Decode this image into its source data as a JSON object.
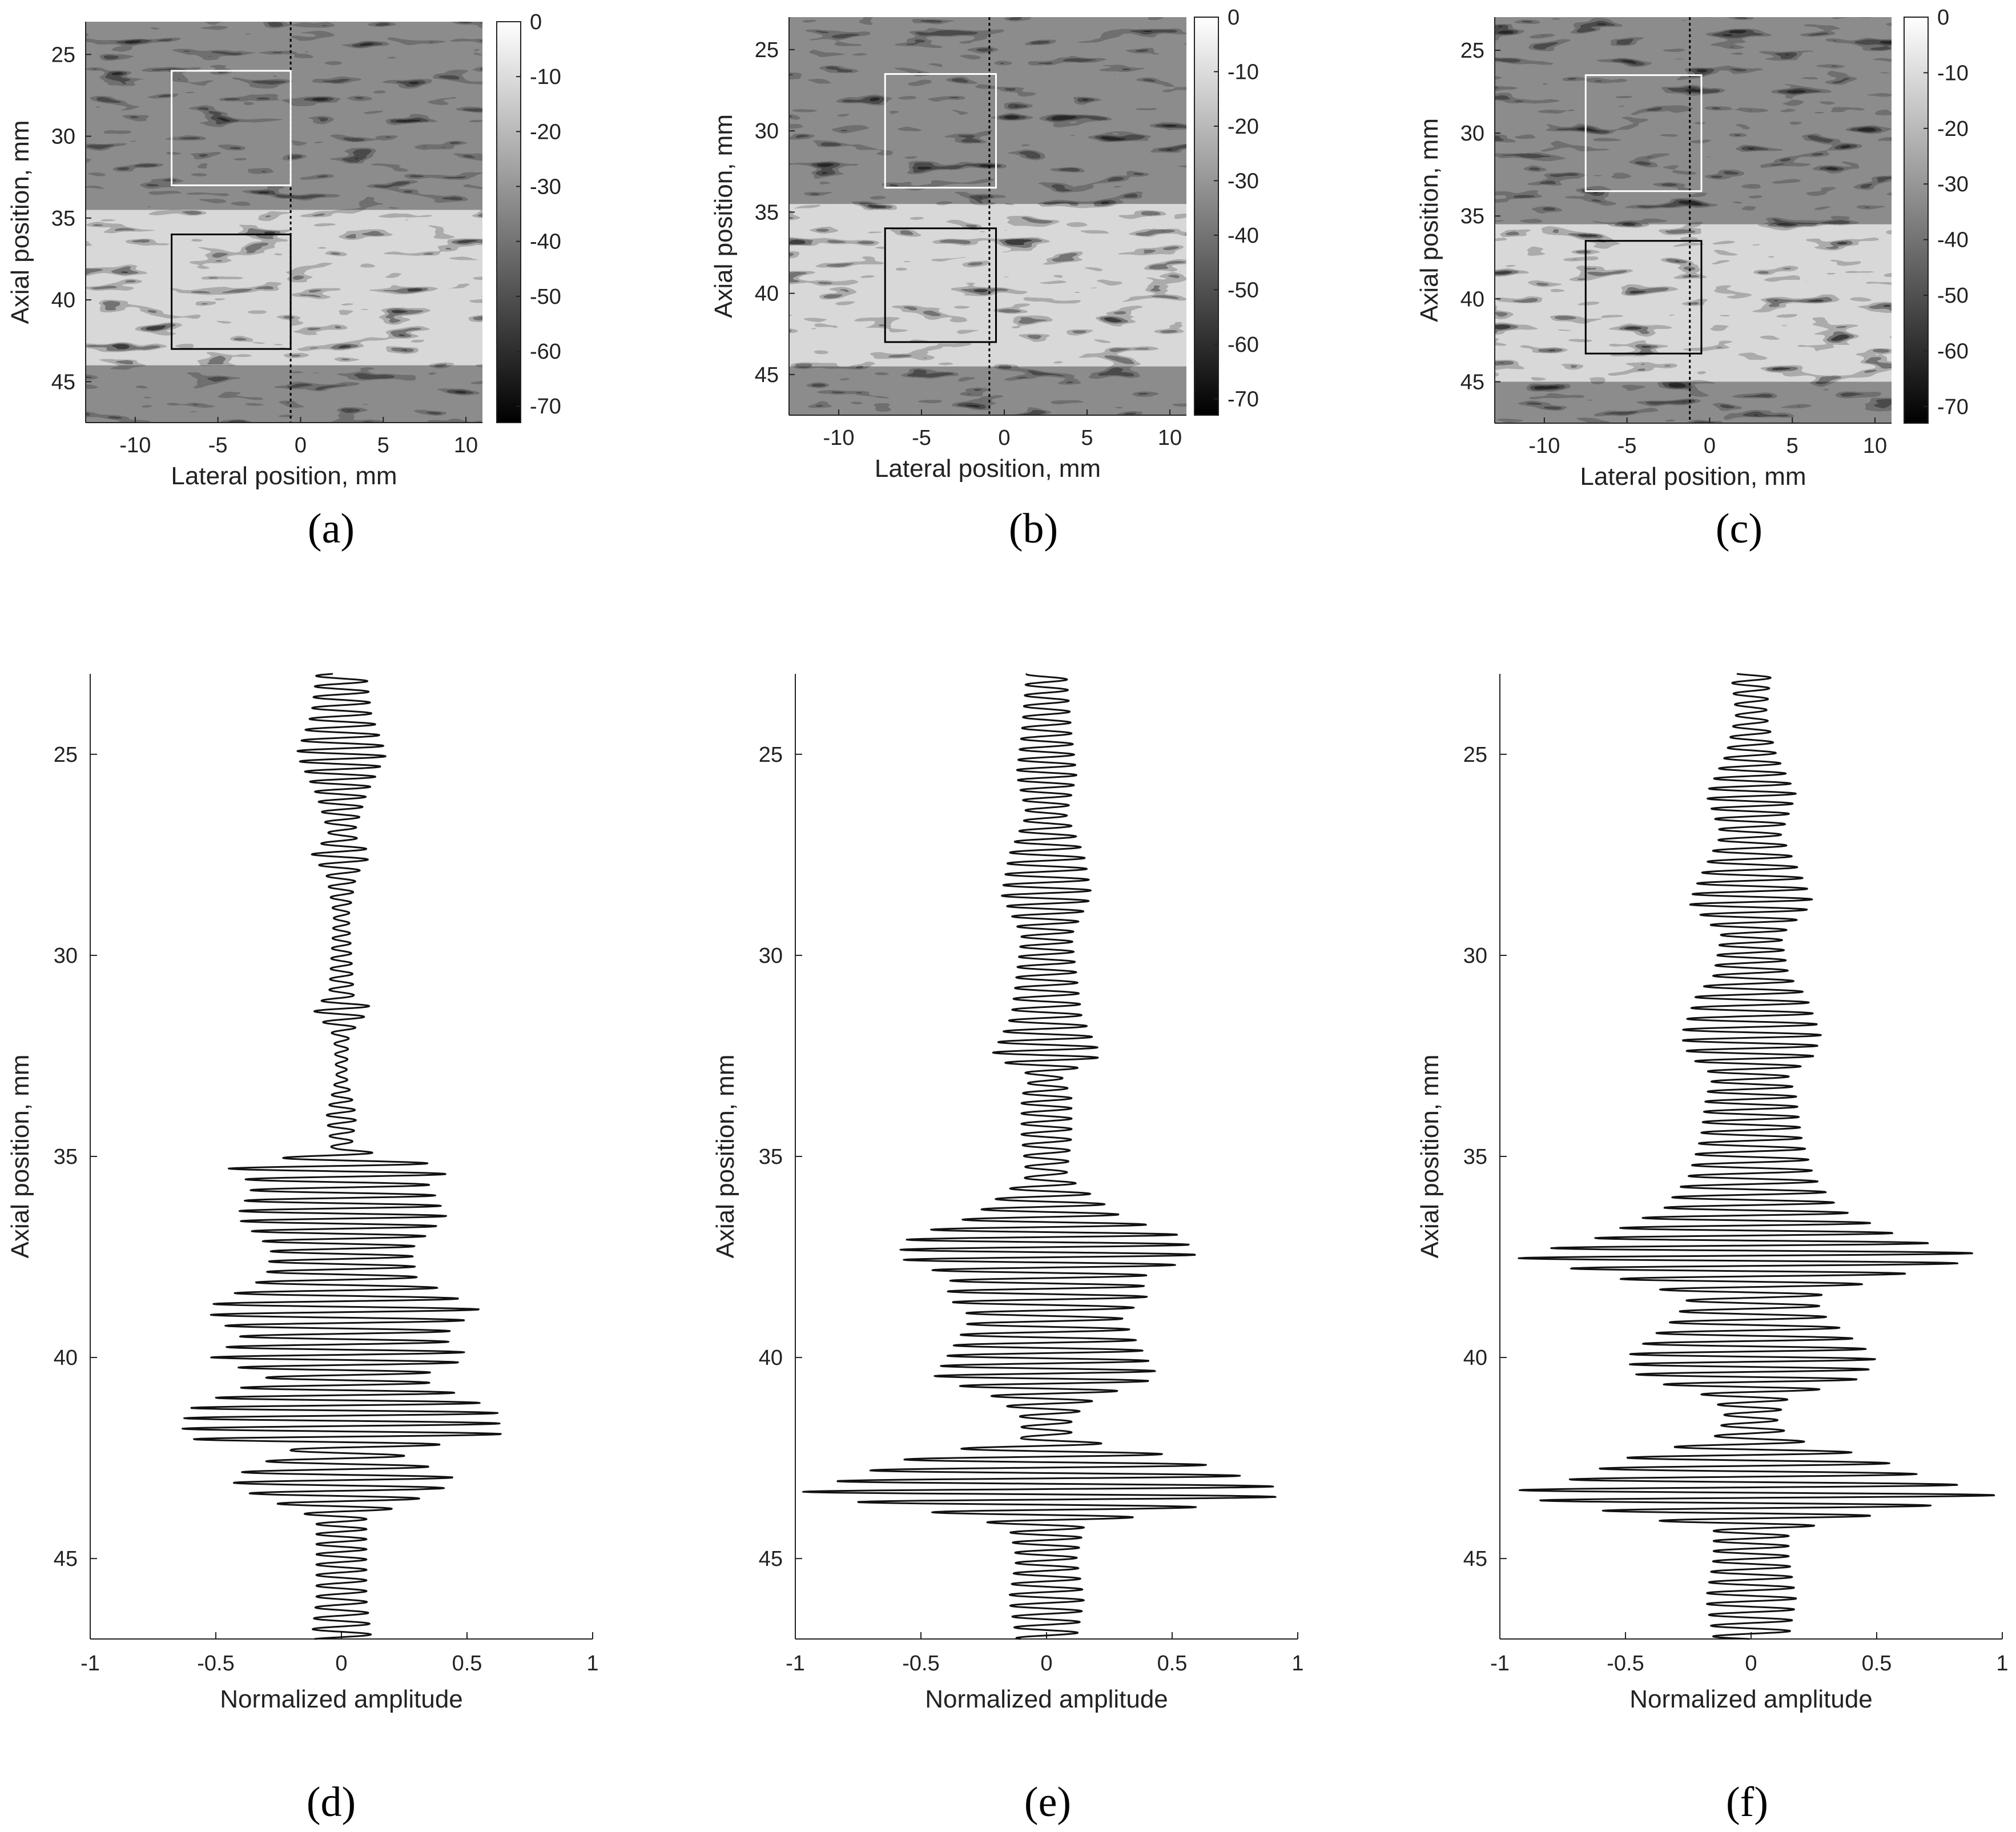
{
  "chart_data": [
    {
      "panel": "(a)",
      "type": "heatmap",
      "description_of_content": "B-mode ultrasound image, grayscale dB",
      "xlabel": "Lateral position, mm",
      "ylabel": "Axial position, mm",
      "xlim": [
        -13,
        11
      ],
      "ylim": [
        23,
        47.5
      ],
      "xticks": [
        -10,
        -5,
        0,
        5,
        10
      ],
      "yticks": [
        25,
        30,
        35,
        40,
        45
      ],
      "colorbar": {
        "range": [
          -73,
          0
        ],
        "ticks": [
          0,
          -10,
          -20,
          -30,
          -40,
          -50,
          -60,
          -70
        ]
      },
      "boxes": [
        {
          "color": "#ffffff",
          "x0": -7.8,
          "x1": -0.6,
          "y0": 26,
          "y1": 33
        },
        {
          "color": "#000000",
          "x0": -7.8,
          "x1": -0.6,
          "y0": 36,
          "y1": 43
        }
      ],
      "scan_line_x": -0.6,
      "bright_band": [
        34.5,
        44
      ]
    },
    {
      "panel": "(b)",
      "type": "heatmap",
      "description_of_content": "B-mode ultrasound image, grayscale dB",
      "xlabel": "Lateral position, mm",
      "ylabel": "Axial position, mm",
      "xlim": [
        -13,
        11
      ],
      "ylim": [
        23,
        47.5
      ],
      "xticks": [
        -10,
        -5,
        0,
        5,
        10
      ],
      "yticks": [
        25,
        30,
        35,
        40,
        45
      ],
      "colorbar": {
        "range": [
          -73,
          0
        ],
        "ticks": [
          0,
          -10,
          -20,
          -30,
          -40,
          -50,
          -60,
          -70
        ]
      },
      "boxes": [
        {
          "color": "#ffffff",
          "x0": -7.2,
          "x1": -0.5,
          "y0": 26.5,
          "y1": 33.5
        },
        {
          "color": "#000000",
          "x0": -7.2,
          "x1": -0.5,
          "y0": 36,
          "y1": 43
        }
      ],
      "scan_line_x": -0.9,
      "bright_band": [
        34.5,
        44.5
      ]
    },
    {
      "panel": "(c)",
      "type": "heatmap",
      "description_of_content": "B-mode ultrasound image, grayscale dB",
      "xlabel": "Lateral position, mm",
      "ylabel": "Axial position, mm",
      "xlim": [
        -13,
        11
      ],
      "ylim": [
        23,
        47.5
      ],
      "xticks": [
        -10,
        -5,
        0,
        5,
        10
      ],
      "yticks": [
        25,
        30,
        35,
        40,
        45
      ],
      "colorbar": {
        "range": [
          -73,
          0
        ],
        "ticks": [
          0,
          -10,
          -20,
          -30,
          -40,
          -50,
          -60,
          -70
        ]
      },
      "boxes": [
        {
          "color": "#ffffff",
          "x0": -7.5,
          "x1": -0.5,
          "y0": 26.5,
          "y1": 33.5
        },
        {
          "color": "#000000",
          "x0": -7.5,
          "x1": -0.5,
          "y0": 36.5,
          "y1": 43.3
        }
      ],
      "scan_line_x": -1.2,
      "bright_band": [
        35.5,
        45
      ]
    },
    {
      "panel": "(d)",
      "type": "line",
      "xlabel": "Normalized amplitude",
      "ylabel": "Axial position, mm",
      "xlim": [
        -1,
        1
      ],
      "ylim": [
        23,
        47
      ],
      "xticks": [
        -1,
        -0.5,
        0,
        0.5,
        1
      ],
      "yticks": [
        25,
        30,
        35,
        40,
        45
      ],
      "cycle_period_mm": 0.26,
      "envelope": [
        [
          23,
          0.1
        ],
        [
          24,
          0.12
        ],
        [
          25,
          0.18
        ],
        [
          26,
          0.1
        ],
        [
          27,
          0.05
        ],
        [
          27.5,
          0.12
        ],
        [
          28,
          0.06
        ],
        [
          29,
          0.03
        ],
        [
          30,
          0.04
        ],
        [
          31,
          0.05
        ],
        [
          31.3,
          0.12
        ],
        [
          32,
          0.03
        ],
        [
          33,
          0.02
        ],
        [
          34,
          0.06
        ],
        [
          34.8,
          0.04
        ],
        [
          35.3,
          0.45
        ],
        [
          35.7,
          0.35
        ],
        [
          36.5,
          0.42
        ],
        [
          37.3,
          0.28
        ],
        [
          38,
          0.3
        ],
        [
          38.8,
          0.55
        ],
        [
          39.5,
          0.4
        ],
        [
          40,
          0.52
        ],
        [
          40.5,
          0.3
        ],
        [
          41.3,
          0.62
        ],
        [
          42,
          0.64
        ],
        [
          42.3,
          0.2
        ],
        [
          43,
          0.45
        ],
        [
          43.3,
          0.4
        ],
        [
          44,
          0.1
        ],
        [
          45,
          0.1
        ],
        [
          46,
          0.1
        ],
        [
          47,
          0.12
        ]
      ]
    },
    {
      "panel": "(e)",
      "type": "line",
      "xlabel": "Normalized amplitude",
      "ylabel": "Axial position, mm",
      "xlim": [
        -1,
        1
      ],
      "ylim": [
        23,
        47
      ],
      "xticks": [
        -1,
        -0.5,
        0,
        0.5,
        1
      ],
      "yticks": [
        25,
        30,
        35,
        40,
        45
      ],
      "cycle_period_mm": 0.26,
      "envelope": [
        [
          23,
          0.08
        ],
        [
          24.5,
          0.1
        ],
        [
          25.5,
          0.12
        ],
        [
          26.5,
          0.08
        ],
        [
          27.5,
          0.15
        ],
        [
          28.5,
          0.18
        ],
        [
          29.5,
          0.1
        ],
        [
          30.5,
          0.12
        ],
        [
          31.5,
          0.14
        ],
        [
          32.5,
          0.22
        ],
        [
          33,
          0.06
        ],
        [
          33.5,
          0.1
        ],
        [
          34.5,
          0.1
        ],
        [
          35.5,
          0.08
        ],
        [
          36.5,
          0.3
        ],
        [
          37,
          0.55
        ],
        [
          37.5,
          0.6
        ],
        [
          38,
          0.38
        ],
        [
          38.5,
          0.4
        ],
        [
          39,
          0.3
        ],
        [
          39.5,
          0.35
        ],
        [
          40,
          0.4
        ],
        [
          40.5,
          0.45
        ],
        [
          41,
          0.2
        ],
        [
          41.5,
          0.1
        ],
        [
          42,
          0.1
        ],
        [
          42.5,
          0.55
        ],
        [
          43,
          0.8
        ],
        [
          43.4,
          1.0
        ],
        [
          43.8,
          0.5
        ],
        [
          44.2,
          0.15
        ],
        [
          45,
          0.12
        ],
        [
          46,
          0.15
        ],
        [
          47,
          0.12
        ]
      ]
    },
    {
      "panel": "(f)",
      "type": "line",
      "xlabel": "Normalized amplitude",
      "ylabel": "Axial position, mm",
      "xlim": [
        -1,
        1
      ],
      "ylim": [
        23,
        47
      ],
      "xticks": [
        -1,
        -0.5,
        0,
        0.5,
        1
      ],
      "yticks": [
        25,
        30,
        35,
        40,
        45
      ],
      "cycle_period_mm": 0.26,
      "envelope": [
        [
          23,
          0.08
        ],
        [
          24,
          0.06
        ],
        [
          25,
          0.1
        ],
        [
          26,
          0.18
        ],
        [
          27,
          0.12
        ],
        [
          28,
          0.2
        ],
        [
          28.7,
          0.25
        ],
        [
          29.5,
          0.12
        ],
        [
          30.5,
          0.15
        ],
        [
          31,
          0.22
        ],
        [
          32,
          0.28
        ],
        [
          32.5,
          0.25
        ],
        [
          33,
          0.15
        ],
        [
          33.5,
          0.18
        ],
        [
          34.5,
          0.2
        ],
        [
          35.5,
          0.25
        ],
        [
          36.3,
          0.35
        ],
        [
          37,
          0.6
        ],
        [
          37.5,
          0.95
        ],
        [
          38,
          0.55
        ],
        [
          38.5,
          0.25
        ],
        [
          39,
          0.3
        ],
        [
          39.5,
          0.4
        ],
        [
          40,
          0.5
        ],
        [
          40.5,
          0.45
        ],
        [
          41,
          0.15
        ],
        [
          41.5,
          0.1
        ],
        [
          42,
          0.15
        ],
        [
          42.5,
          0.5
        ],
        [
          43,
          0.7
        ],
        [
          43.4,
          1.0
        ],
        [
          43.8,
          0.6
        ],
        [
          44.3,
          0.15
        ],
        [
          45,
          0.15
        ],
        [
          46,
          0.18
        ],
        [
          47,
          0.15
        ]
      ]
    }
  ],
  "figure": {
    "panel_labels": [
      "(a)",
      "(b)",
      "(c)",
      "(d)",
      "(e)",
      "(f)"
    ]
  }
}
